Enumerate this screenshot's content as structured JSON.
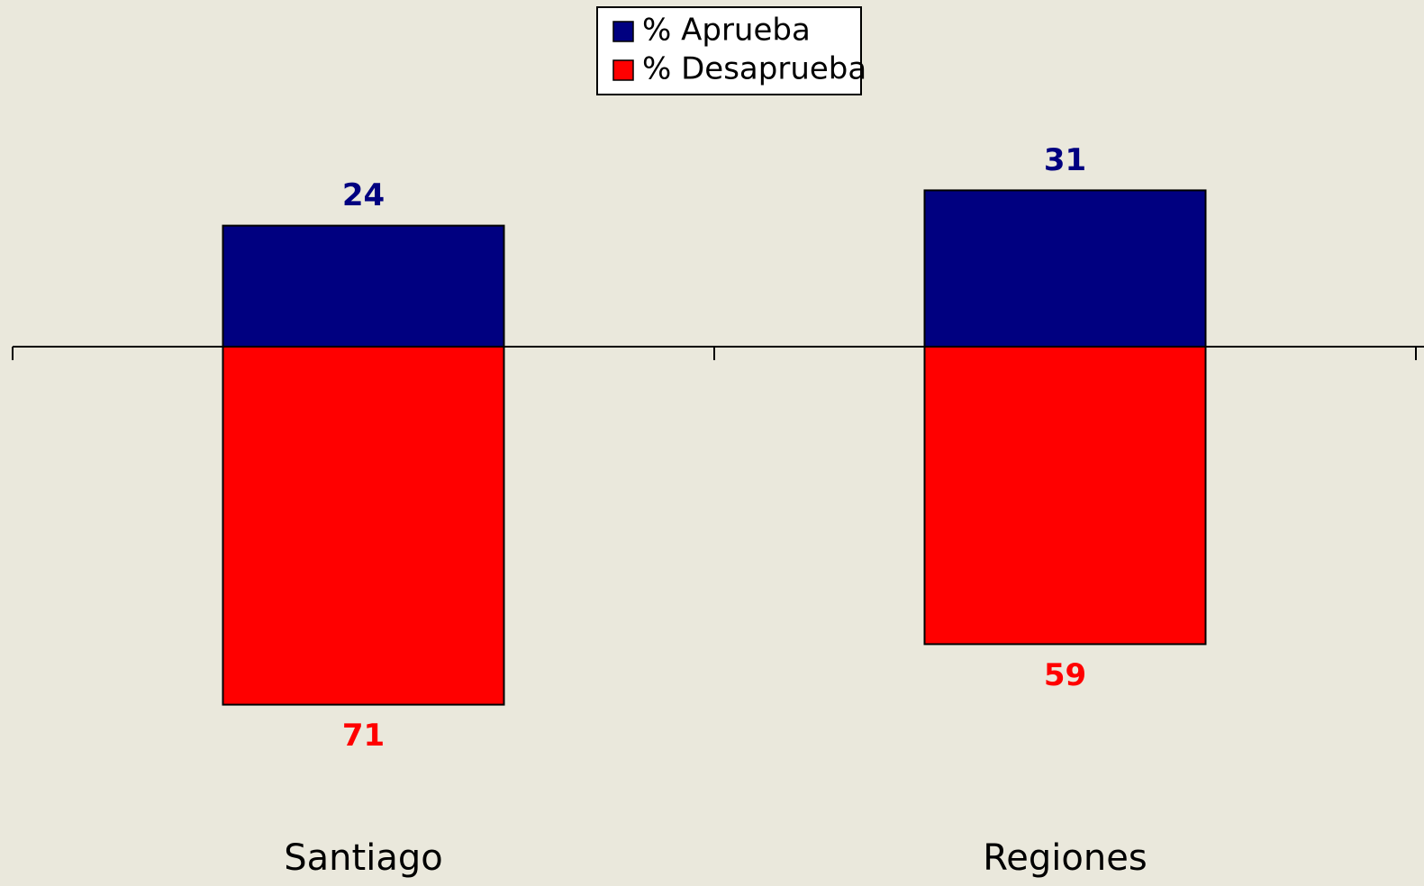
{
  "chart_data": {
    "type": "diverging_bar",
    "categories": [
      "Santiago",
      "Regiones"
    ],
    "series": [
      {
        "name": "% Aprueba",
        "color": "#000080",
        "values": [
          24,
          31
        ]
      },
      {
        "name": "% Desaprueba",
        "color": "#ff0000",
        "values": [
          -71,
          -59
        ],
        "value_labels": [
          "71",
          "59"
        ]
      }
    ],
    "ylim": [
      -80,
      40
    ]
  }
}
